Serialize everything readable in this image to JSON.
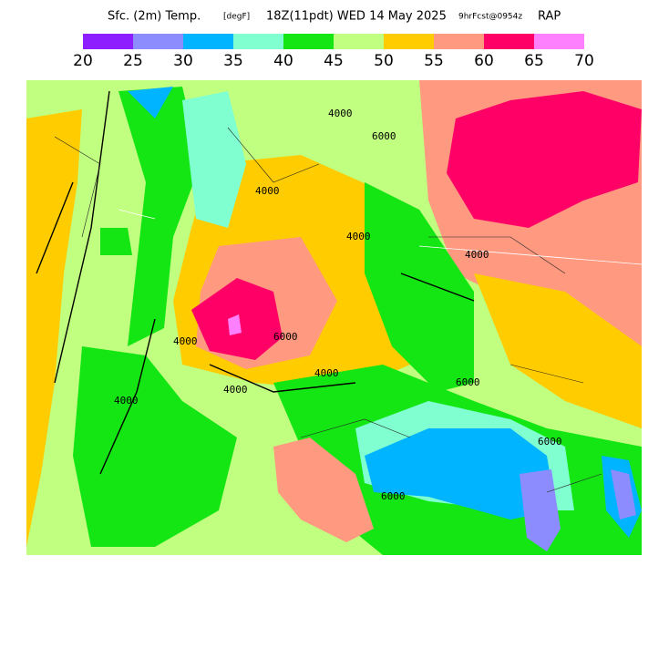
{
  "header": {
    "field": "Sfc. (2m) Temp.",
    "units": "[degF]",
    "valid": "18Z(11pdt) WED 14 May 2025",
    "forecast": "9hrFcst@0954z",
    "model": "RAP"
  },
  "legend": {
    "colors": [
      "#8c1eff",
      "#8c8cff",
      "#00b4ff",
      "#80ffd0",
      "#14e614",
      "#c0ff80",
      "#ffcc00",
      "#ff9980",
      "#ff0066",
      "#ff80ff"
    ],
    "ticks": [
      20,
      25,
      30,
      35,
      40,
      45,
      50,
      55,
      60,
      65,
      70
    ]
  },
  "map": {
    "contour_labels": [
      "4000",
      "6000",
      "4000",
      "4000",
      "4000",
      "4000",
      "6000",
      "4000",
      "6000",
      "4000",
      "4000",
      "6000",
      "6000"
    ]
  }
}
